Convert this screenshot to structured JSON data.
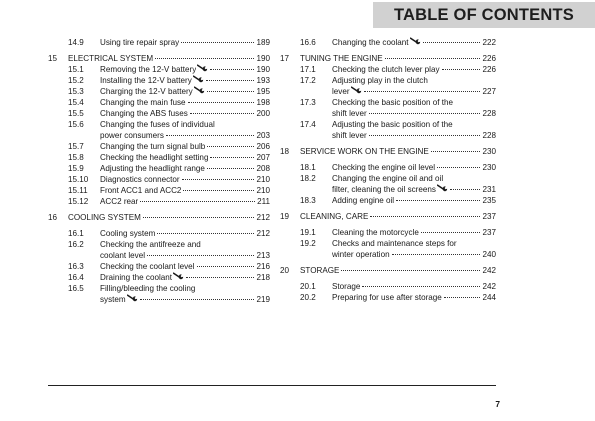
{
  "header": {
    "banner": "TABLE OF CONTENTS"
  },
  "left_entries": [
    {
      "level": "sub",
      "num": "14.9",
      "title": "Using tire repair spray",
      "page": "189",
      "gap": 5
    },
    {
      "level": "chapter",
      "num": "15",
      "title": "ELECTRICAL SYSTEM",
      "page": "190",
      "gap": 5
    },
    {
      "level": "sub",
      "num": "15.1",
      "title": "Removing the 12-V battery",
      "wrench": true,
      "page": "190",
      "gap": 0
    },
    {
      "level": "sub",
      "num": "15.2",
      "title": "Installing the 12-V battery",
      "wrench": true,
      "page": "193",
      "gap": 0
    },
    {
      "level": "sub",
      "num": "15.3",
      "title": "Charging the 12-V battery",
      "wrench": true,
      "page": "195",
      "gap": 0
    },
    {
      "level": "sub",
      "num": "15.4",
      "title": "Changing the main fuse",
      "page": "198",
      "gap": 0
    },
    {
      "level": "sub",
      "num": "15.5",
      "title": "Changing the ABS fuses",
      "page": "200",
      "gap": 0
    },
    {
      "level": "sub",
      "num": "15.6",
      "lines": [
        "Changing the fuses of individual",
        "power consumers"
      ],
      "page": "203",
      "gap": 0
    },
    {
      "level": "sub",
      "num": "15.7",
      "title": "Changing the turn signal bulb",
      "page": "206",
      "gap": 0
    },
    {
      "level": "sub",
      "num": "15.8",
      "title": "Checking the headlight setting",
      "page": "207",
      "gap": 0
    },
    {
      "level": "sub",
      "num": "15.9",
      "title": "Adjusting the headlight range",
      "page": "208",
      "gap": 0
    },
    {
      "level": "sub",
      "num": "15.10",
      "title": "Diagnostics connector",
      "page": "210",
      "gap": 0
    },
    {
      "level": "sub",
      "num": "15.11",
      "title": "Front ACC1 and ACC2",
      "page": "210",
      "gap": 0
    },
    {
      "level": "sub",
      "num": "15.12",
      "title": "ACC2 rear",
      "page": "211",
      "gap": 0
    },
    {
      "level": "chapter",
      "num": "16",
      "title": "COOLING SYSTEM",
      "page": "212",
      "gap": 5
    },
    {
      "level": "sub",
      "num": "16.1",
      "title": "Cooling system",
      "page": "212",
      "gap": 5
    },
    {
      "level": "sub",
      "num": "16.2",
      "lines": [
        "Checking the antifreeze and",
        "coolant level"
      ],
      "page": "213",
      "gap": 0
    },
    {
      "level": "sub",
      "num": "16.3",
      "title": "Checking the coolant level",
      "page": "216",
      "gap": 0
    },
    {
      "level": "sub",
      "num": "16.4",
      "title": "Draining the coolant",
      "wrench": true,
      "page": "218",
      "gap": 0
    },
    {
      "level": "sub",
      "num": "16.5",
      "lines": [
        "Filling/bleeding the cooling",
        "system"
      ],
      "wrench": true,
      "page": "219",
      "gap": 0
    }
  ],
  "right_entries": [
    {
      "level": "sub",
      "num": "16.6",
      "title": "Changing the coolant",
      "wrench": true,
      "page": "222",
      "gap": 5
    },
    {
      "level": "chapter",
      "num": "17",
      "title": "TUNING THE ENGINE",
      "page": "226",
      "gap": 5
    },
    {
      "level": "sub",
      "num": "17.1",
      "title": "Checking the clutch lever play",
      "page": "226",
      "gap": 0
    },
    {
      "level": "sub",
      "num": "17.2",
      "lines": [
        "Adjusting play in the clutch",
        "lever"
      ],
      "wrench": true,
      "page": "227",
      "gap": 0
    },
    {
      "level": "sub",
      "num": "17.3",
      "lines": [
        "Checking the basic position of the",
        "shift lever"
      ],
      "page": "228",
      "gap": 0
    },
    {
      "level": "sub",
      "num": "17.4",
      "lines": [
        "Adjusting the basic position of the",
        "shift lever"
      ],
      "page": "228",
      "gap": 0
    },
    {
      "level": "chapter",
      "num": "18",
      "title": "SERVICE WORK ON THE ENGINE",
      "page": "230",
      "gap": 5
    },
    {
      "level": "sub",
      "num": "18.1",
      "title": "Checking the engine oil level",
      "page": "230",
      "gap": 5
    },
    {
      "level": "sub",
      "num": "18.2",
      "lines": [
        "Changing the engine oil and oil",
        "filter, cleaning the oil screens"
      ],
      "wrench": true,
      "page": "231",
      "gap": 0
    },
    {
      "level": "sub",
      "num": "18.3",
      "title": "Adding engine oil",
      "page": "235",
      "gap": 0
    },
    {
      "level": "chapter",
      "num": "19",
      "title": "CLEANING, CARE",
      "page": "237",
      "gap": 5
    },
    {
      "level": "sub",
      "num": "19.1",
      "title": "Cleaning the motorcycle",
      "page": "237",
      "gap": 5
    },
    {
      "level": "sub",
      "num": "19.2",
      "lines": [
        "Checks and maintenance steps for",
        "winter operation"
      ],
      "page": "240",
      "gap": 0
    },
    {
      "level": "chapter",
      "num": "20",
      "title": "STORAGE",
      "page": "242",
      "gap": 5
    },
    {
      "level": "sub",
      "num": "20.1",
      "title": "Storage",
      "page": "242",
      "gap": 5
    },
    {
      "level": "sub",
      "num": "20.2",
      "title": "Preparing for use after storage",
      "page": "244",
      "gap": 0
    }
  ],
  "footer": {
    "page_number": "7"
  }
}
